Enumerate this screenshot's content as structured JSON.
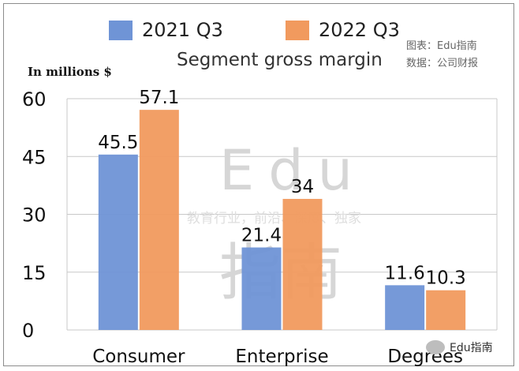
{
  "legend": [
    {
      "label": "2021 Q3",
      "color": "#6f94d6"
    },
    {
      "label": "2022 Q3",
      "color": "#f19a5e"
    }
  ],
  "source_lines": [
    "图表：Edu指南",
    "数据：公司财报"
  ],
  "watermark": {
    "big": "Edu",
    "tagline": "教育行业，前沿、深度、独家",
    "chars": "指南",
    "badge": "Edu指南"
  },
  "chart_data": {
    "type": "bar",
    "title": "Segment gross margin",
    "ylabel": "In millions  $",
    "categories": [
      "Consumer",
      "Enterprise",
      "Degrees"
    ],
    "series": [
      {
        "name": "2021 Q3",
        "values": [
          45.5,
          21.4,
          11.6
        ],
        "labels": [
          "45.5",
          "21.4",
          "11.6"
        ]
      },
      {
        "name": "2022 Q3",
        "values": [
          57.1,
          34,
          10.3
        ],
        "labels": [
          "57.1",
          "34",
          "10.3"
        ]
      }
    ],
    "ylim": [
      0,
      60
    ],
    "yticks": [
      0,
      15,
      30,
      45,
      60
    ],
    "grid": true
  }
}
